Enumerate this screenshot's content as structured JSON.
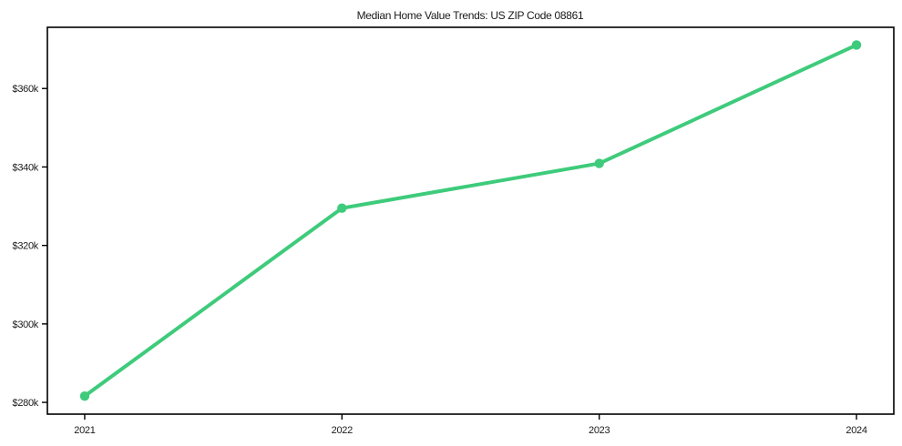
{
  "chart_data": {
    "type": "line",
    "title": "Median Home Value Trends: US ZIP Code 08861",
    "x": [
      2021,
      2022,
      2023,
      2024
    ],
    "values": [
      281600,
      329500,
      340900,
      371100
    ],
    "xlabel": "",
    "ylabel": "",
    "xlim": [
      2020.855,
      2024.145
    ],
    "ylim": [
      277000,
      375600
    ],
    "xticks": [
      {
        "value": 2021,
        "label": "2021"
      },
      {
        "value": 2022,
        "label": "2022"
      },
      {
        "value": 2023,
        "label": "2023"
      },
      {
        "value": 2024,
        "label": "2024"
      }
    ],
    "yticks": [
      {
        "value": 280000,
        "label": "$280k"
      },
      {
        "value": 300000,
        "label": "$300k"
      },
      {
        "value": 320000,
        "label": "$320k"
      },
      {
        "value": 340000,
        "label": "$340k"
      },
      {
        "value": 360000,
        "label": "$360k"
      }
    ],
    "grid": false,
    "legend": "none",
    "colors": {
      "line": "#3ecb7b",
      "marker": "#3ecb7b",
      "axis": "#000000",
      "text": "#1a1a1a",
      "background": "#ffffff"
    }
  }
}
